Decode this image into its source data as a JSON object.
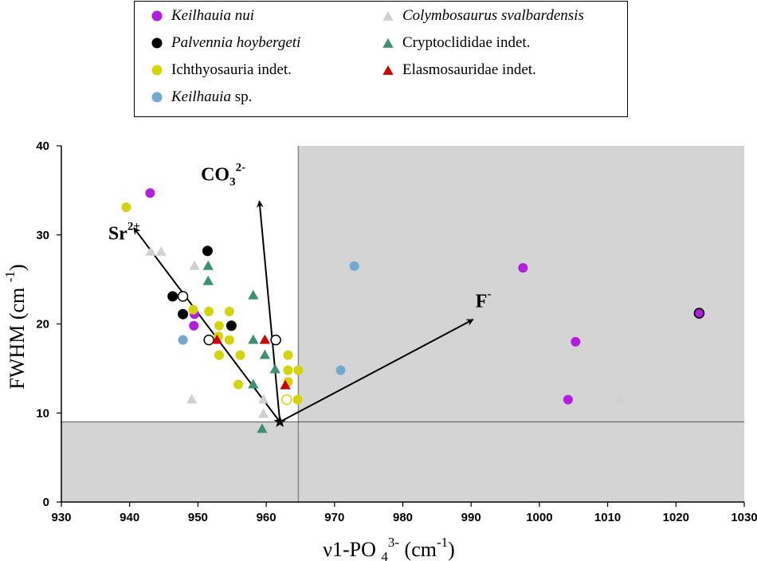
{
  "chart_data": {
    "type": "scatter",
    "title": "",
    "xlabel": "ν1-PO4³⁻ (cm⁻¹)",
    "ylabel": "FWHM (cm⁻¹)",
    "xlim": [
      930,
      1030
    ],
    "ylim": [
      0,
      40
    ],
    "xticks": [
      930,
      940,
      950,
      960,
      970,
      980,
      990,
      1000,
      1010,
      1020,
      1030
    ],
    "yticks": [
      0,
      10,
      20,
      30,
      40
    ],
    "grid": false,
    "legend_position": "top-center",
    "shaded_region_note": "grey area: x > 964.7 or y < 9",
    "threshold_lines": {
      "x": 964.7,
      "y": 9.0
    },
    "reference_point": {
      "label": "star",
      "x": 962.0,
      "y": 9.0
    },
    "vectors": [
      {
        "label_main": "Sr",
        "label_sup": "2+",
        "from": [
          962.0,
          9.0
        ],
        "to": [
          940.6,
          30.8
        ],
        "label_at": [
          939.2,
          29.5
        ]
      },
      {
        "label_main": "CO",
        "label_sub": "3",
        "label_sup": "2-",
        "from": [
          962.0,
          9.0
        ],
        "to": [
          959.0,
          33.8
        ],
        "label_at": [
          953.7,
          36.1
        ]
      },
      {
        "label_main": "F",
        "label_sup": "-",
        "from": [
          962.0,
          9.0
        ],
        "to": [
          990.3,
          20.5
        ],
        "label_at": [
          991.8,
          21.9
        ]
      }
    ],
    "legend": [
      {
        "label": "Keilhauia nui",
        "label_plain": "",
        "italic": true,
        "marker": "circle",
        "color": "#b21edb",
        "column": 0
      },
      {
        "label": "Palvennia hoybergeti",
        "label_plain": "",
        "italic": true,
        "marker": "circle",
        "color": "#000000",
        "column": 0
      },
      {
        "label": "",
        "label_plain": "Ichthyosauria indet.",
        "italic": false,
        "marker": "circle",
        "color": "#d4d40e",
        "column": 0
      },
      {
        "label": "Keilhauia",
        "label_plain": " sp.",
        "italic": true,
        "marker": "circle",
        "color": "#74a9cf",
        "column": 0
      },
      {
        "label": "Colymbosaurus svalbardensis",
        "label_plain": "",
        "italic": true,
        "marker": "triangle",
        "color": "#d0d0d0",
        "column": 1
      },
      {
        "label": "",
        "label_plain": "Cryptoclididae indet.",
        "italic": false,
        "marker": "triangle",
        "color": "#3f8f73",
        "column": 1
      },
      {
        "label": "",
        "label_plain": "Elasmosauridae indet.",
        "italic": false,
        "marker": "triangle",
        "color": "#cc0000",
        "column": 1
      }
    ],
    "series": [
      {
        "name": "Keilhauia nui",
        "marker": "circle",
        "color": "#b21edb",
        "points": [
          [
            943.0,
            34.7
          ],
          [
            949.4,
            19.8
          ],
          [
            949.5,
            21.1
          ],
          [
            997.6,
            26.3
          ],
          [
            1005.3,
            18.0
          ],
          [
            1004.2,
            11.5
          ],
          [
            1023.4,
            21.2
          ]
        ]
      },
      {
        "name": "Palvennia hoybergeti",
        "marker": "circle",
        "color": "#000000",
        "points": [
          [
            946.3,
            23.1
          ],
          [
            947.8,
            21.1
          ],
          [
            951.4,
            28.2
          ],
          [
            954.9,
            19.8
          ],
          [
            1023.4,
            21.2
          ]
        ]
      },
      {
        "name": "Palvennia hoybergeti (open)",
        "marker": "open-circle",
        "color": "#000000",
        "points": [
          [
            947.8,
            23.1
          ],
          [
            951.6,
            18.2
          ],
          [
            961.4,
            18.2
          ]
        ]
      },
      {
        "name": "Ichthyosauria indet.",
        "marker": "circle",
        "color": "#d4d40e",
        "points": [
          [
            939.5,
            33.1
          ],
          [
            949.3,
            21.6
          ],
          [
            951.6,
            21.4
          ],
          [
            954.6,
            21.4
          ],
          [
            953.1,
            19.8
          ],
          [
            953.0,
            18.6
          ],
          [
            954.6,
            18.2
          ],
          [
            956.2,
            16.5
          ],
          [
            953.1,
            16.5
          ],
          [
            955.9,
            13.2
          ],
          [
            963.2,
            16.5
          ],
          [
            963.2,
            14.8
          ],
          [
            964.7,
            14.8
          ],
          [
            963.2,
            13.5
          ],
          [
            964.6,
            11.5
          ]
        ]
      },
      {
        "name": "Ichthyosauria indet. (open)",
        "marker": "open-circle",
        "color": "#d4d40e",
        "points": [
          [
            963.0,
            11.5
          ]
        ]
      },
      {
        "name": "Keilhauia sp.",
        "marker": "circle",
        "color": "#74a9cf",
        "points": [
          [
            947.8,
            18.2
          ],
          [
            972.9,
            26.5
          ],
          [
            970.9,
            14.8
          ]
        ]
      },
      {
        "name": "Colymbosaurus svalbardensis",
        "marker": "triangle",
        "color": "#d0d0d0",
        "points": [
          [
            943.1,
            28.1
          ],
          [
            944.6,
            28.1
          ],
          [
            949.5,
            26.5
          ],
          [
            949.1,
            11.5
          ],
          [
            959.6,
            11.5
          ],
          [
            959.6,
            9.9
          ],
          [
            1011.9,
            11.5
          ]
        ]
      },
      {
        "name": "Cryptoclididae indet.",
        "marker": "triangle",
        "color": "#3f8f73",
        "points": [
          [
            951.5,
            26.5
          ],
          [
            951.5,
            24.8
          ],
          [
            958.1,
            23.2
          ],
          [
            958.1,
            18.2
          ],
          [
            959.8,
            16.5
          ],
          [
            961.3,
            14.9
          ],
          [
            958.1,
            13.2
          ],
          [
            959.4,
            8.2
          ]
        ]
      },
      {
        "name": "Elasmosauridae indet.",
        "marker": "triangle",
        "color": "#cc0000",
        "points": [
          [
            952.8,
            18.2
          ],
          [
            959.8,
            18.2
          ],
          [
            962.8,
            13.1
          ]
        ]
      }
    ]
  }
}
